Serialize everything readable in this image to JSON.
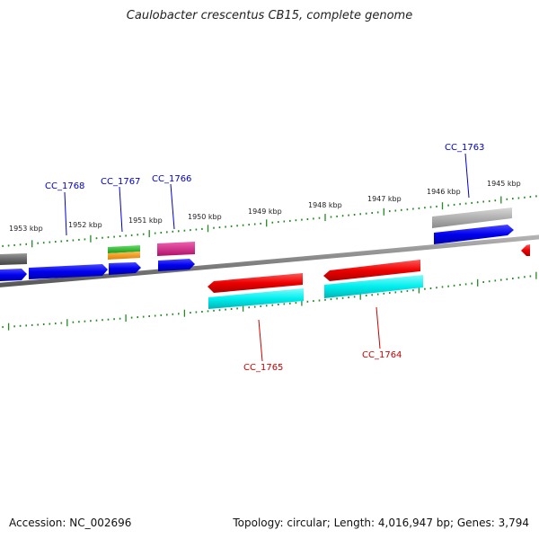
{
  "title": "Caulobacter crescentus CB15, complete genome",
  "footer": {
    "accession": "Accession: NC_002696",
    "summary": "Topology: circular; Length: 4,016,947 bp; Genes: 3,794"
  },
  "colors": {
    "backbone": "#808080",
    "tick": "#228b22",
    "label_forward": "#0000cc",
    "label_reverse": "#cc0000",
    "gene_blue": "#0000ee",
    "gene_red": "#ee0000",
    "gene_cyan": "#00eeee",
    "gene_gray": "#b0b0b0",
    "gene_darkgray": "#6a6a6a",
    "gene_green": "#22bb22",
    "gene_orange": "#ff9900",
    "gene_magenta": "#dd1188"
  },
  "kbp_labels": [
    "1953 kbp",
    "1952 kbp",
    "1951 kbp",
    "1950 kbp",
    "1949 kbp",
    "1948 kbp",
    "1947 kbp",
    "1946 kbp",
    "1945 kbp"
  ],
  "gene_labels": [
    {
      "text": "CC_1768",
      "strand": "forward"
    },
    {
      "text": "CC_1767",
      "strand": "forward"
    },
    {
      "text": "CC_1766",
      "strand": "forward"
    },
    {
      "text": "CC_1763",
      "strand": "forward"
    },
    {
      "text": "CC_1765",
      "strand": "reverse"
    },
    {
      "text": "CC_1764",
      "strand": "reverse"
    }
  ]
}
